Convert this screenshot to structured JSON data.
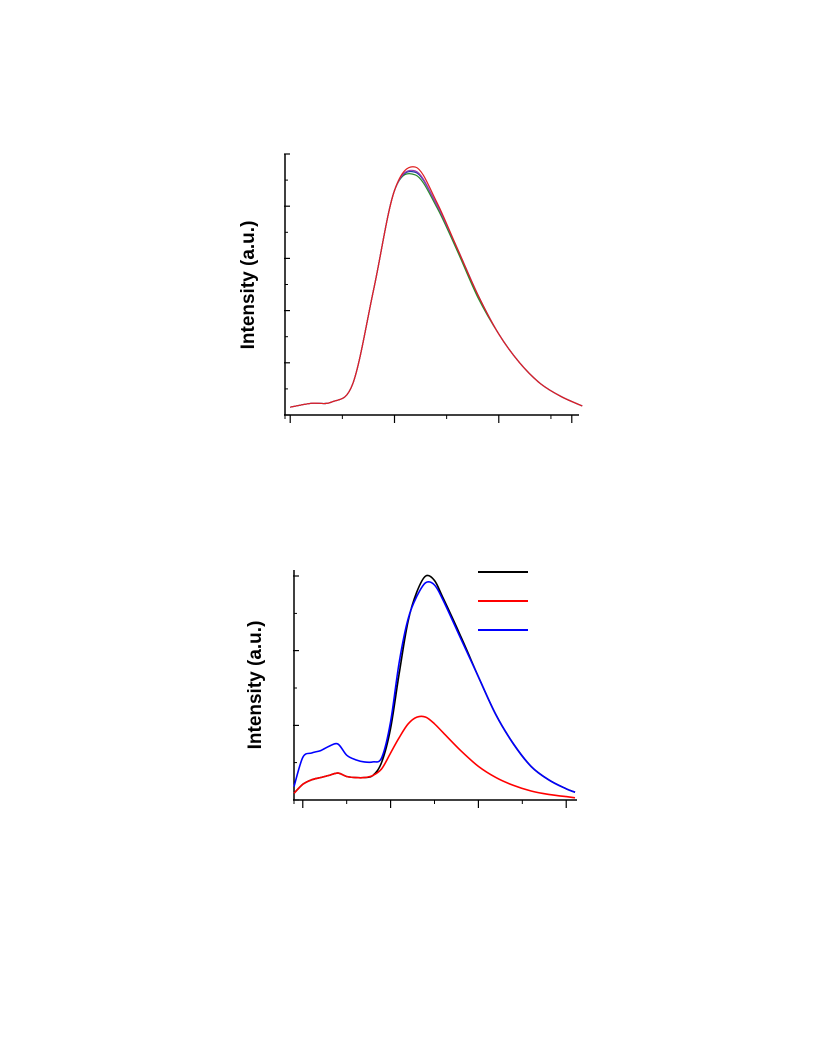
{
  "chart_data": [
    {
      "type": "line",
      "title": "",
      "xlabel": "",
      "ylabel": "Intensity (a.u.)",
      "xlim": [
        -0.05,
        2.75
      ],
      "ylim": [
        0,
        1.0
      ],
      "xticks_major": [
        0,
        1,
        2,
        2.7
      ],
      "xticks_minor": [
        -0.05,
        0.5,
        1.5,
        2.5
      ],
      "yticks_major": [
        0,
        0.2,
        0.4,
        0.6,
        0.8,
        1.0
      ],
      "yticks_minor": [
        0.1,
        0.3,
        0.5,
        0.7,
        0.9
      ],
      "grid": false,
      "legend": "none",
      "series": [
        {
          "color": "#2a8a2a",
          "x": [
            0,
            0.2,
            0.4,
            0.6,
            0.8,
            1.0,
            1.2,
            1.4,
            1.6,
            1.8,
            2.0,
            2.2,
            2.4,
            2.6,
            2.8
          ],
          "y": [
            0.03,
            0.045,
            0.05,
            0.12,
            0.48,
            0.86,
            0.92,
            0.8,
            0.63,
            0.45,
            0.31,
            0.2,
            0.12,
            0.07,
            0.035
          ]
        },
        {
          "color": "#1a3aa8",
          "x": [
            0,
            0.2,
            0.4,
            0.6,
            0.8,
            1.0,
            1.2,
            1.4,
            1.6,
            1.8,
            2.0,
            2.2,
            2.4,
            2.6,
            2.8
          ],
          "y": [
            0.03,
            0.045,
            0.05,
            0.12,
            0.48,
            0.86,
            0.93,
            0.81,
            0.64,
            0.46,
            0.31,
            0.2,
            0.12,
            0.07,
            0.035
          ]
        },
        {
          "color": "#9a3ab0",
          "x": [
            0,
            0.2,
            0.4,
            0.6,
            0.8,
            1.0,
            1.2,
            1.4,
            1.6,
            1.8,
            2.0,
            2.2,
            2.4,
            2.6,
            2.8
          ],
          "y": [
            0.03,
            0.045,
            0.05,
            0.12,
            0.48,
            0.86,
            0.935,
            0.81,
            0.64,
            0.46,
            0.31,
            0.2,
            0.12,
            0.07,
            0.035
          ]
        },
        {
          "color": "#e02020",
          "x": [
            0,
            0.2,
            0.4,
            0.6,
            0.8,
            1.0,
            1.2,
            1.4,
            1.6,
            1.8,
            2.0,
            2.2,
            2.4,
            2.6,
            2.8
          ],
          "y": [
            0.03,
            0.045,
            0.05,
            0.12,
            0.48,
            0.86,
            0.95,
            0.82,
            0.64,
            0.46,
            0.31,
            0.2,
            0.12,
            0.07,
            0.035
          ]
        }
      ]
    },
    {
      "type": "line",
      "title": "",
      "xlabel": "",
      "ylabel": "Intensity (a.u.)",
      "xlim": [
        -0.1,
        3.1
      ],
      "ylim": [
        0,
        1.0
      ],
      "xticks_major": [
        0,
        1,
        2,
        3
      ],
      "xticks_minor": [
        -0.1,
        0.5,
        1.5,
        2.5
      ],
      "yticks_major": [
        0,
        0.333,
        0.667,
        1.0
      ],
      "yticks_minor": [
        0.167,
        0.5,
        0.833
      ],
      "grid": false,
      "legend": "top-right",
      "legend_entries": [
        {
          "color": "#000000",
          "label": ""
        },
        {
          "color": "#ff0000",
          "label": ""
        },
        {
          "color": "#0000ff",
          "label": ""
        }
      ],
      "series": [
        {
          "color": "#000000",
          "x": [
            -0.1,
            0,
            0.1,
            0.2,
            0.3,
            0.4,
            0.5,
            0.6,
            0.7,
            0.8,
            0.9,
            1.0,
            1.1,
            1.2,
            1.3,
            1.4,
            1.5,
            1.6,
            1.8,
            2.0,
            2.2,
            2.4,
            2.6,
            2.8,
            3.0,
            3.1
          ],
          "y": [
            0.03,
            0.07,
            0.09,
            0.1,
            0.11,
            0.12,
            0.105,
            0.1,
            0.1,
            0.11,
            0.17,
            0.32,
            0.57,
            0.8,
            0.93,
            1.0,
            0.98,
            0.9,
            0.73,
            0.55,
            0.38,
            0.25,
            0.15,
            0.09,
            0.05,
            0.035
          ]
        },
        {
          "color": "#ff0000",
          "x": [
            -0.1,
            0,
            0.1,
            0.2,
            0.3,
            0.4,
            0.5,
            0.6,
            0.7,
            0.8,
            0.9,
            1.0,
            1.1,
            1.2,
            1.3,
            1.4,
            1.5,
            1.6,
            1.8,
            2.0,
            2.2,
            2.4,
            2.6,
            2.8,
            3.0,
            3.1
          ],
          "y": [
            0.03,
            0.07,
            0.09,
            0.1,
            0.11,
            0.12,
            0.105,
            0.1,
            0.1,
            0.11,
            0.14,
            0.21,
            0.28,
            0.34,
            0.37,
            0.37,
            0.34,
            0.3,
            0.22,
            0.15,
            0.1,
            0.065,
            0.04,
            0.025,
            0.015,
            0.01
          ]
        },
        {
          "color": "#0000ff",
          "x": [
            -0.1,
            0,
            0.1,
            0.2,
            0.3,
            0.4,
            0.5,
            0.6,
            0.7,
            0.8,
            0.9,
            1.0,
            1.1,
            1.2,
            1.3,
            1.4,
            1.5,
            1.6,
            1.8,
            2.0,
            2.2,
            2.4,
            2.6,
            2.8,
            3.0,
            3.1
          ],
          "y": [
            0.06,
            0.19,
            0.21,
            0.22,
            0.24,
            0.25,
            0.2,
            0.18,
            0.17,
            0.17,
            0.19,
            0.35,
            0.62,
            0.81,
            0.91,
            0.97,
            0.96,
            0.89,
            0.72,
            0.55,
            0.38,
            0.25,
            0.15,
            0.09,
            0.05,
            0.035
          ]
        }
      ]
    }
  ]
}
